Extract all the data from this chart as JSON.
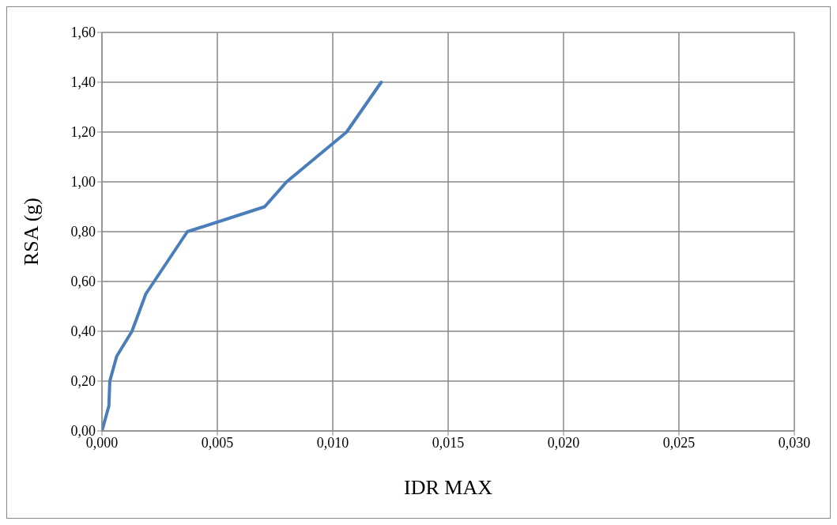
{
  "chart_data": {
    "type": "line",
    "xlabel": "IDR MAX",
    "ylabel": "RSA (g)",
    "x": [
      0,
      0.0003,
      0.00034,
      0.00064,
      0.0013,
      0.0019,
      0.0037,
      0.00705,
      0.008,
      0.0106,
      0.0121
    ],
    "series": [
      {
        "color": "#4a7ebb",
        "values": [
          0,
          0.1,
          0.2,
          0.3,
          0.4,
          0.55,
          0.8,
          0.9,
          1.0,
          1.2,
          1.4
        ]
      }
    ],
    "xlim": [
      0,
      0.03
    ],
    "xticks": [
      {
        "value": 0,
        "label": "0,000"
      },
      {
        "value": 0.005,
        "label": "0,005"
      },
      {
        "value": 0.01,
        "label": "0,010"
      },
      {
        "value": 0.015,
        "label": "0,015"
      },
      {
        "value": 0.02,
        "label": "0,020"
      },
      {
        "value": 0.025,
        "label": "0,025"
      },
      {
        "value": 0.03,
        "label": "0,030"
      }
    ],
    "ylim": [
      0,
      1.6
    ],
    "yticks": [
      {
        "value": 0,
        "label": "0,00"
      },
      {
        "value": 0.2,
        "label": "0,20"
      },
      {
        "value": 0.4,
        "label": "0,40"
      },
      {
        "value": 0.6,
        "label": "0,60"
      },
      {
        "value": 0.8,
        "label": "0,80"
      },
      {
        "value": 1.0,
        "label": "1,00"
      },
      {
        "value": 1.2,
        "label": "1,20"
      },
      {
        "value": 1.4,
        "label": "1,40"
      },
      {
        "value": 1.6,
        "label": "1,60"
      }
    ],
    "grid": true,
    "legend": false,
    "marker": "none",
    "line_style": "solid"
  }
}
